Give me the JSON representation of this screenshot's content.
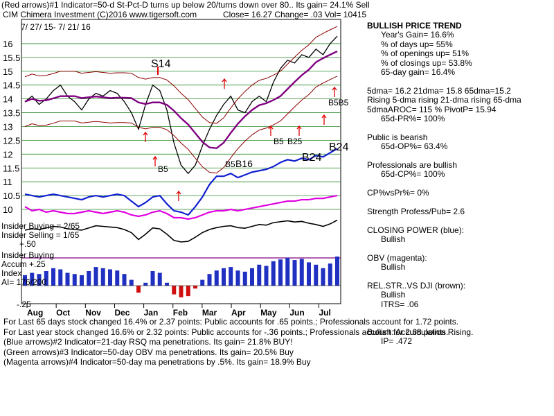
{
  "header": {
    "line1": "(Red arrows)#1 Indicator=50-d St-Pct-D turns up below 20/turns down over 80.. Its gain= 24.1% Sell",
    "line2_left": "CIM  Chimera Investment  (C)2016 www.tigersoft.com",
    "line2_close": "Close=  16.27  Change=  .03  Vol= 10415",
    "date_range": "7/ 27/ 15-  7/ 21/ 16"
  },
  "panel": {
    "title": "BULLISH PRICE TREND",
    "lines": [
      "Year's Gain= 16.6%",
      "% of days up= 55%",
      "% of openings up= 51%",
      "% of closings up= 53.8%",
      "65-day gain= 16.4%",
      "",
      "5dma= 16.2 21dma= 15.8 65dma=15.2",
      "Rising 5-dma rising 21-dma rising 65-dma",
      "5dmaAROC= 115 %  PivotP= 15.94",
      "65d-PR%= 100%",
      "",
      "Public is bearish",
      "65d-OP%= 63.4%",
      "",
      "Professionals are bullish",
      "65d-CP%= 100%",
      "",
      "CP%vsPr%=  0%",
      "",
      "Strength Profess/Pub= 2.6",
      "",
      "CLOSING POWER (blue):",
      "Bullish",
      "",
      "OBV (magenta):",
      "Bullish",
      "",
      "REL.STR..VS DJI (brown):",
      "Bullish",
      "ITRS= .06",
      "",
      "",
      "Bullish: Accumulation Rising.",
      "IP=  .472"
    ]
  },
  "footer": [
    "For Last 65 days stock changed  16.4% or  2.37 points:  Public accounts for  .65 points.;  Professionals account for  1.72 points.",
    "For Last year stock changed  16.6% or  2.32 points:  Public accounts for -.36 points.;  Professionals account for  2.68 points.",
    "(Blue arrows)#2 Indicator=21-day RSQ ma penetrations. Its gain= 21.8% BUY!",
    "(Green arrows)#3 Indicator=50-day OBV ma penetrations. Its gain= 20.5% Buy",
    "(Magenta arrows)#4 Indicator=50-day ma penetrations by .5%. Its gain= 18.9% Buy"
  ],
  "chart_data": {
    "type": "line",
    "yticks": [
      "16",
      "15.5",
      "15",
      "14.5",
      "14",
      "13.5",
      "13",
      "12.5",
      "12",
      "11.5",
      "11",
      "10.5",
      "10"
    ],
    "months": [
      "Aug",
      "Oct",
      "Nov",
      "Dec",
      "Jan",
      "Feb",
      "Mar",
      "Apr",
      "May",
      "Jun",
      "Jul"
    ],
    "annotations": [
      "S14",
      "B5",
      "B5",
      "B16",
      "B24",
      "B24",
      "B5",
      "B25",
      "B5B5"
    ],
    "lower_labels": {
      "insider_buying": "Insider Buying = 2/65",
      "insider_selling": "Insider Selling = 1/65",
      "plus50": "+.50",
      "accum1": "Insider Buying",
      "accum2": "Accum  +.25",
      "accum3": "Index",
      "ai": "AI= 176/200",
      "minus25": "-.25"
    },
    "series": [
      {
        "values": [
          13.9,
          14.1,
          13.8,
          14.0,
          14.3,
          14.5,
          14.1,
          13.9,
          13.6,
          14.0,
          14.2,
          14.1,
          14.3,
          14.2,
          13.9,
          13.5,
          12.9,
          13.8,
          14.5,
          14.3,
          13.6,
          12.4,
          11.6,
          11.3,
          11.6,
          12.3,
          12.9,
          13.4,
          13.8,
          14.1,
          13.6,
          13.5,
          13.9,
          14.1,
          13.9,
          14.6,
          15.1,
          15.4,
          15.3,
          15.6,
          15.5,
          15.8,
          15.6,
          16.0,
          16.27
        ]
      },
      {
        "values": [
          10.55,
          10.5,
          10.45,
          10.5,
          10.55,
          10.5,
          10.45,
          10.4,
          10.35,
          10.45,
          10.5,
          10.45,
          10.5,
          10.55,
          10.5,
          10.3,
          10.1,
          10.25,
          10.45,
          10.5,
          10.2,
          9.95,
          9.9,
          9.8,
          10.1,
          10.45,
          10.9,
          11.2,
          11.2,
          11.3,
          11.15,
          11.25,
          11.35,
          11.4,
          11.45,
          11.55,
          11.7,
          11.8,
          11.75,
          11.85,
          11.8,
          11.95,
          11.9,
          12.05,
          12.2
        ]
      },
      {
        "values": [
          10.1,
          9.95,
          10.0,
          9.9,
          9.95,
          9.9,
          9.85,
          9.85,
          9.9,
          9.95,
          9.9,
          9.85,
          9.9,
          9.95,
          9.9,
          9.8,
          9.75,
          9.8,
          9.9,
          9.95,
          9.85,
          9.7,
          9.7,
          9.65,
          9.7,
          9.8,
          9.9,
          9.95,
          9.95,
          10.0,
          9.95,
          10.0,
          10.05,
          10.1,
          10.15,
          10.2,
          10.25,
          10.3,
          10.3,
          10.35,
          10.35,
          10.4,
          10.4,
          10.45,
          10.5
        ]
      }
    ],
    "accumulation": [
      0.18,
      0.22,
      0.2,
      0.25,
      0.3,
      0.28,
      0.22,
      0.2,
      0.18,
      0.25,
      0.32,
      0.3,
      0.28,
      0.26,
      0.2,
      0.1,
      -0.12,
      0.05,
      0.25,
      0.22,
      0.05,
      -0.15,
      -0.2,
      -0.18,
      -0.05,
      0.1,
      0.2,
      0.26,
      0.3,
      0.32,
      0.26,
      0.24,
      0.3,
      0.36,
      0.34,
      0.42,
      0.45,
      0.48,
      0.44,
      0.46,
      0.4,
      0.36,
      0.3,
      0.38,
      0.5
    ]
  }
}
